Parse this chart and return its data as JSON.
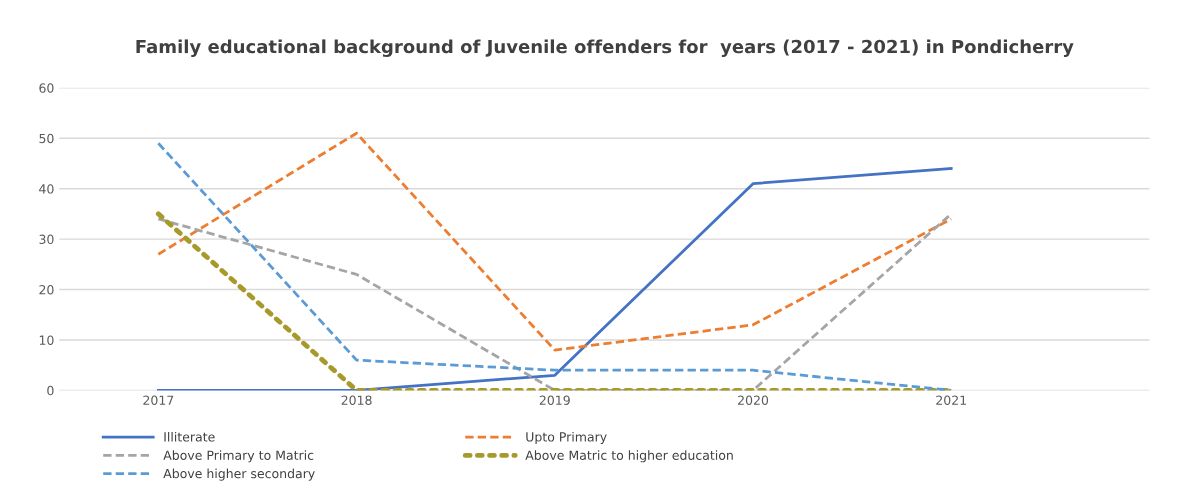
{
  "chart_data": {
    "type": "line",
    "title": "Family educational background of Juvenile offenders for  years (2017 - 2021) in Pondicherry",
    "categories": [
      "2017",
      "2018",
      "2019",
      "2020",
      "2021"
    ],
    "series": [
      {
        "name": "Illiterate",
        "color": "#4472c4",
        "line_style": "solid",
        "values": [
          0,
          0,
          3,
          41,
          44
        ]
      },
      {
        "name": "Upto Primary",
        "color": "#ed7d31",
        "line_style": "dashed",
        "values": [
          27,
          51,
          8,
          13,
          34
        ]
      },
      {
        "name": "Above Primary to Matric",
        "color": "#a5a5a5",
        "line_style": "dashed",
        "values": [
          34,
          23,
          0,
          0,
          35
        ]
      },
      {
        "name": "Above Matric to higher education",
        "color": "#a89a2a",
        "line_style": "dotted",
        "values": [
          35,
          0,
          0,
          0,
          0
        ]
      },
      {
        "name": "Above higher secondary",
        "color": "#5b9bd5",
        "line_style": "dashed",
        "values": [
          49,
          6,
          4,
          4,
          0
        ]
      }
    ],
    "ylim": [
      0,
      60
    ],
    "yticks": [
      0,
      10,
      20,
      30,
      40,
      50,
      60
    ],
    "grid": "y",
    "legend": "bottom",
    "marker": "none"
  }
}
